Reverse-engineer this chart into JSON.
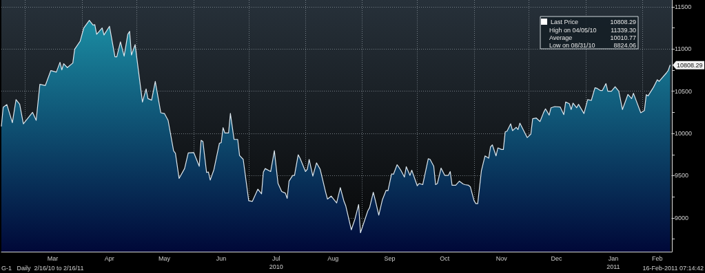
{
  "chart_data": {
    "type": "area",
    "legend": "top right",
    "grid": true,
    "marker": "none",
    "line_style": "solid",
    "xlim": [
      "2010-02-16",
      "2011-02-17"
    ],
    "xticks": [
      {
        "value": "2010-03-01",
        "label": null
      },
      {
        "value": "2010-03-16",
        "label": "Mar"
      },
      {
        "value": "2010-04-01",
        "label": null
      },
      {
        "value": "2010-04-16",
        "label": "Apr"
      },
      {
        "value": "2010-05-01",
        "label": null
      },
      {
        "value": "2010-05-16",
        "label": "May"
      },
      {
        "value": "2010-06-01",
        "label": null
      },
      {
        "value": "2010-06-16",
        "label": "Jun"
      },
      {
        "value": "2010-07-01",
        "label": null
      },
      {
        "value": "2010-07-16",
        "label": "Jul\n2010"
      },
      {
        "value": "2010-08-01",
        "label": null
      },
      {
        "value": "2010-08-16",
        "label": "Aug"
      },
      {
        "value": "2010-09-01",
        "label": null
      },
      {
        "value": "2010-09-16",
        "label": "Sep"
      },
      {
        "value": "2010-10-01",
        "label": null
      },
      {
        "value": "2010-10-16",
        "label": "Oct"
      },
      {
        "value": "2010-11-01",
        "label": null
      },
      {
        "value": "2010-11-16",
        "label": "Nov"
      },
      {
        "value": "2010-12-01",
        "label": null
      },
      {
        "value": "2010-12-16",
        "label": "Dec"
      },
      {
        "value": "2011-01-01",
        "label": null
      },
      {
        "value": "2011-01-16",
        "label": "Jan\n2011"
      },
      {
        "value": "2011-02-01",
        "label": null
      },
      {
        "value": "2011-02-09",
        "label": "Feb"
      }
    ],
    "ylim": [
      8600,
      11580
    ],
    "yticks": [
      {
        "value": 8750,
        "label": null
      },
      9000,
      {
        "value": 9250,
        "label": null
      },
      9500,
      {
        "value": 9750,
        "label": null
      },
      10000,
      {
        "value": 10250,
        "label": null
      },
      10500,
      {
        "value": 10750,
        "label": null
      },
      11000,
      {
        "value": 11250,
        "label": null
      },
      11500
    ],
    "annotations": [
      {
        "text": "10808.29",
        "x": "2011-02-16",
        "y": 10808.29
      },
      "High on 04/05/10 11339.30",
      "Average 10010.77",
      "Low on 08/31/10 8824.06",
      "G-1   Daily  2/16/10 to 2/16/11",
      "16-Feb-2011 07:14:42"
    ],
    "series": [
      {
        "name": "Last Price",
        "color": "#1b8da3",
        "x": [
          "2010-02-16",
          "2010-02-17",
          "2010-02-19",
          "2010-02-22",
          "2010-02-24",
          "2010-02-26",
          "2010-02-28",
          "2010-03-05",
          "2010-03-07",
          "2010-03-09",
          "2010-03-12",
          "2010-03-15",
          "2010-03-18",
          "2010-03-20",
          "2010-03-21",
          "2010-03-22",
          "2010-03-24",
          "2010-03-27",
          "2010-03-28",
          "2010-03-31",
          "2010-04-02",
          "2010-04-05",
          "2010-04-07",
          "2010-04-08",
          "2010-04-09",
          "2010-04-12",
          "2010-04-13",
          "2010-04-16",
          "2010-04-19",
          "2010-04-20",
          "2010-04-22",
          "2010-04-24",
          "2010-04-26",
          "2010-04-27",
          "2010-04-28",
          "2010-04-30",
          "2010-05-04",
          "2010-05-06",
          "2010-05-07",
          "2010-05-09",
          "2010-05-11",
          "2010-05-14",
          "2010-05-16",
          "2010-05-18",
          "2010-05-21",
          "2010-05-22",
          "2010-05-24",
          "2010-05-27",
          "2010-05-29",
          "2010-06-01",
          "2010-06-04",
          "2010-06-05",
          "2010-06-06",
          "2010-06-08",
          "2010-06-09",
          "2010-06-10",
          "2010-06-12",
          "2010-06-15",
          "2010-06-16",
          "2010-06-17",
          "2010-06-18",
          "2010-06-20",
          "2010-06-21",
          "2010-06-23",
          "2010-06-25",
          "2010-06-26",
          "2010-06-28",
          "2010-07-01",
          "2010-07-03",
          "2010-07-06",
          "2010-07-08",
          "2010-07-09",
          "2010-07-10",
          "2010-07-13",
          "2010-07-15",
          "2010-07-17",
          "2010-07-19",
          "2010-07-21",
          "2010-07-22",
          "2010-07-23",
          "2010-07-25",
          "2010-07-26",
          "2010-07-28",
          "2010-07-29",
          "2010-08-01",
          "2010-08-02",
          "2010-08-03",
          "2010-08-05",
          "2010-08-07",
          "2010-08-09",
          "2010-08-12",
          "2010-08-13",
          "2010-08-15",
          "2010-08-18",
          "2010-08-20",
          "2010-08-22",
          "2010-08-23",
          "2010-08-26",
          "2010-08-28",
          "2010-08-30",
          "2010-08-31",
          "2010-09-04",
          "2010-09-05",
          "2010-09-07",
          "2010-09-08",
          "2010-09-10",
          "2010-09-12",
          "2010-09-14",
          "2010-09-15",
          "2010-09-17",
          "2010-09-18",
          "2010-09-20",
          "2010-09-21",
          "2010-09-22",
          "2010-09-24",
          "2010-09-25",
          "2010-09-27",
          "2010-09-28",
          "2010-10-01",
          "2010-10-02",
          "2010-10-04",
          "2010-10-07",
          "2010-10-08",
          "2010-10-10",
          "2010-10-11",
          "2010-10-12",
          "2010-10-14",
          "2010-10-16",
          "2010-10-18",
          "2010-10-19",
          "2010-10-20",
          "2010-10-22",
          "2010-10-24",
          "2010-10-26",
          "2010-10-27",
          "2010-10-29",
          "2010-10-30",
          "2010-11-01",
          "2010-11-02",
          "2010-11-03",
          "2010-11-05",
          "2010-11-06",
          "2010-11-07",
          "2010-11-09",
          "2010-11-10",
          "2010-11-11",
          "2010-11-13",
          "2010-11-14",
          "2010-11-16",
          "2010-11-17",
          "2010-11-18",
          "2010-11-19",
          "2010-11-21",
          "2010-11-22",
          "2010-11-24",
          "2010-11-25",
          "2010-11-26",
          "2010-11-30",
          "2010-12-02",
          "2010-12-03",
          "2010-12-05",
          "2010-12-07",
          "2010-12-09",
          "2010-12-10",
          "2010-12-12",
          "2010-12-13",
          "2010-12-15",
          "2010-12-18",
          "2010-12-20",
          "2010-12-21",
          "2010-12-23",
          "2010-12-24",
          "2010-12-25",
          "2010-12-27",
          "2010-12-28",
          "2010-12-31",
          "2011-01-02",
          "2011-01-04",
          "2011-01-06",
          "2011-01-07",
          "2011-01-09",
          "2011-01-10",
          "2011-01-12",
          "2011-01-13",
          "2011-01-15",
          "2011-01-17",
          "2011-01-19",
          "2011-01-21",
          "2011-01-24",
          "2011-01-26",
          "2011-01-27",
          "2011-01-31",
          "2011-02-02",
          "2011-02-03",
          "2011-02-04",
          "2011-02-07",
          "2011-02-09",
          "2011-02-10",
          "2011-02-14",
          "2011-02-15",
          "2011-02-16"
        ],
        "values": [
          10087,
          10310,
          10342,
          10128,
          10400,
          10345,
          10114,
          10250,
          10155,
          10582,
          10568,
          10745,
          10726,
          10842,
          10753,
          10826,
          10780,
          10834,
          10997,
          11092,
          11250,
          11339,
          11283,
          11288,
          11174,
          11250,
          11166,
          11269,
          10908,
          10908,
          11084,
          10916,
          11174,
          11209,
          10929,
          11052,
          10372,
          10527,
          10413,
          10394,
          10617,
          10245,
          10236,
          10155,
          9794,
          9766,
          9467,
          9584,
          9769,
          9774,
          9611,
          9918,
          9905,
          9538,
          9544,
          9448,
          9571,
          9883,
          9891,
          10068,
          10005,
          10005,
          10237,
          9929,
          9929,
          9739,
          9693,
          9204,
          9196,
          9340,
          9285,
          9543,
          9584,
          9549,
          9796,
          9408,
          9313,
          9293,
          9231,
          9435,
          9503,
          9503,
          9747,
          9707,
          9549,
          9576,
          9693,
          9495,
          9652,
          9576,
          9304,
          9223,
          9258,
          9177,
          9359,
          9196,
          9141,
          8859,
          8987,
          9158,
          8824,
          9082,
          9122,
          9304,
          9217,
          9033,
          9217,
          9326,
          9321,
          9522,
          9516,
          9630,
          9598,
          9565,
          9484,
          9606,
          9503,
          9565,
          9380,
          9408,
          9394,
          9701,
          9693,
          9611,
          9394,
          9408,
          9590,
          9503,
          9503,
          9549,
          9386,
          9386,
          9435,
          9402,
          9394,
          9386,
          9367,
          9204,
          9169,
          9169,
          9557,
          9647,
          9734,
          9707,
          9842,
          9864,
          9734,
          9829,
          9810,
          9810,
          10019,
          10027,
          10114,
          10033,
          10073,
          10046,
          10122,
          9951,
          9992,
          10174,
          10182,
          10141,
          10250,
          10291,
          10217,
          10304,
          10318,
          10313,
          10223,
          10372,
          10353,
          10283,
          10359,
          10304,
          10345,
          10236,
          10400,
          10391,
          10541,
          10535,
          10508,
          10508,
          10590,
          10500,
          10500,
          10554,
          10500,
          10283,
          10462,
          10413,
          10476,
          10245,
          10272,
          10459,
          10445,
          10549,
          10636,
          10617,
          10717,
          10747,
          10808.29
        ]
      }
    ]
  }
}
